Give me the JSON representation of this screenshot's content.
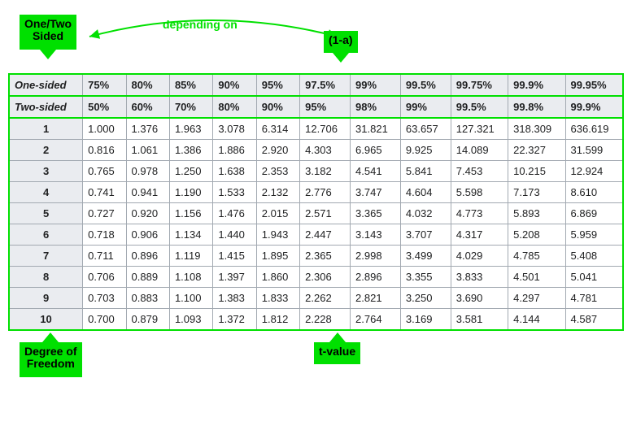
{
  "annotations": {
    "topLeft": "One/Two\nSided",
    "topRight": "(1-a)",
    "depending": "depending on",
    "bottomLeft": "Degree of\nFreedom",
    "bottomRight": "t-value",
    "arcColor": "#00e000",
    "labelBg": "#00e000",
    "labelTextColor": "#000000"
  },
  "table": {
    "headerRows": [
      {
        "label": "One-sided",
        "cells": [
          "75%",
          "80%",
          "85%",
          "90%",
          "95%",
          "97.5%",
          "99%",
          "99.5%",
          "99.75%",
          "99.9%",
          "99.95%"
        ]
      },
      {
        "label": "Two-sided",
        "cells": [
          "50%",
          "60%",
          "70%",
          "80%",
          "90%",
          "95%",
          "98%",
          "99%",
          "99.5%",
          "99.8%",
          "99.9%"
        ]
      }
    ],
    "bodyRows": [
      {
        "df": "1",
        "cells": [
          "1.000",
          "1.376",
          "1.963",
          "3.078",
          "6.314",
          "12.706",
          "31.821",
          "63.657",
          "127.321",
          "318.309",
          "636.619"
        ]
      },
      {
        "df": "2",
        "cells": [
          "0.816",
          "1.061",
          "1.386",
          "1.886",
          "2.920",
          "4.303",
          "6.965",
          "9.925",
          "14.089",
          "22.327",
          "31.599"
        ]
      },
      {
        "df": "3",
        "cells": [
          "0.765",
          "0.978",
          "1.250",
          "1.638",
          "2.353",
          "3.182",
          "4.541",
          "5.841",
          "7.453",
          "10.215",
          "12.924"
        ]
      },
      {
        "df": "4",
        "cells": [
          "0.741",
          "0.941",
          "1.190",
          "1.533",
          "2.132",
          "2.776",
          "3.747",
          "4.604",
          "5.598",
          "7.173",
          "8.610"
        ]
      },
      {
        "df": "5",
        "cells": [
          "0.727",
          "0.920",
          "1.156",
          "1.476",
          "2.015",
          "2.571",
          "3.365",
          "4.032",
          "4.773",
          "5.893",
          "6.869"
        ]
      },
      {
        "df": "6",
        "cells": [
          "0.718",
          "0.906",
          "1.134",
          "1.440",
          "1.943",
          "2.447",
          "3.143",
          "3.707",
          "4.317",
          "5.208",
          "5.959"
        ]
      },
      {
        "df": "7",
        "cells": [
          "0.711",
          "0.896",
          "1.119",
          "1.415",
          "1.895",
          "2.365",
          "2.998",
          "3.499",
          "4.029",
          "4.785",
          "5.408"
        ]
      },
      {
        "df": "8",
        "cells": [
          "0.706",
          "0.889",
          "1.108",
          "1.397",
          "1.860",
          "2.306",
          "2.896",
          "3.355",
          "3.833",
          "4.501",
          "5.041"
        ]
      },
      {
        "df": "9",
        "cells": [
          "0.703",
          "0.883",
          "1.100",
          "1.383",
          "1.833",
          "2.262",
          "2.821",
          "3.250",
          "3.690",
          "4.297",
          "4.781"
        ]
      },
      {
        "df": "10",
        "cells": [
          "0.700",
          "0.879",
          "1.093",
          "1.372",
          "1.812",
          "2.228",
          "2.764",
          "3.169",
          "3.581",
          "4.144",
          "4.587"
        ]
      }
    ],
    "borderColor": "#00e000",
    "cellBorderColor": "#a2a9b1",
    "headerBg": "#eaecf0",
    "cellBg": "#ffffff",
    "textColor": "#202122",
    "fontSize": 13
  }
}
